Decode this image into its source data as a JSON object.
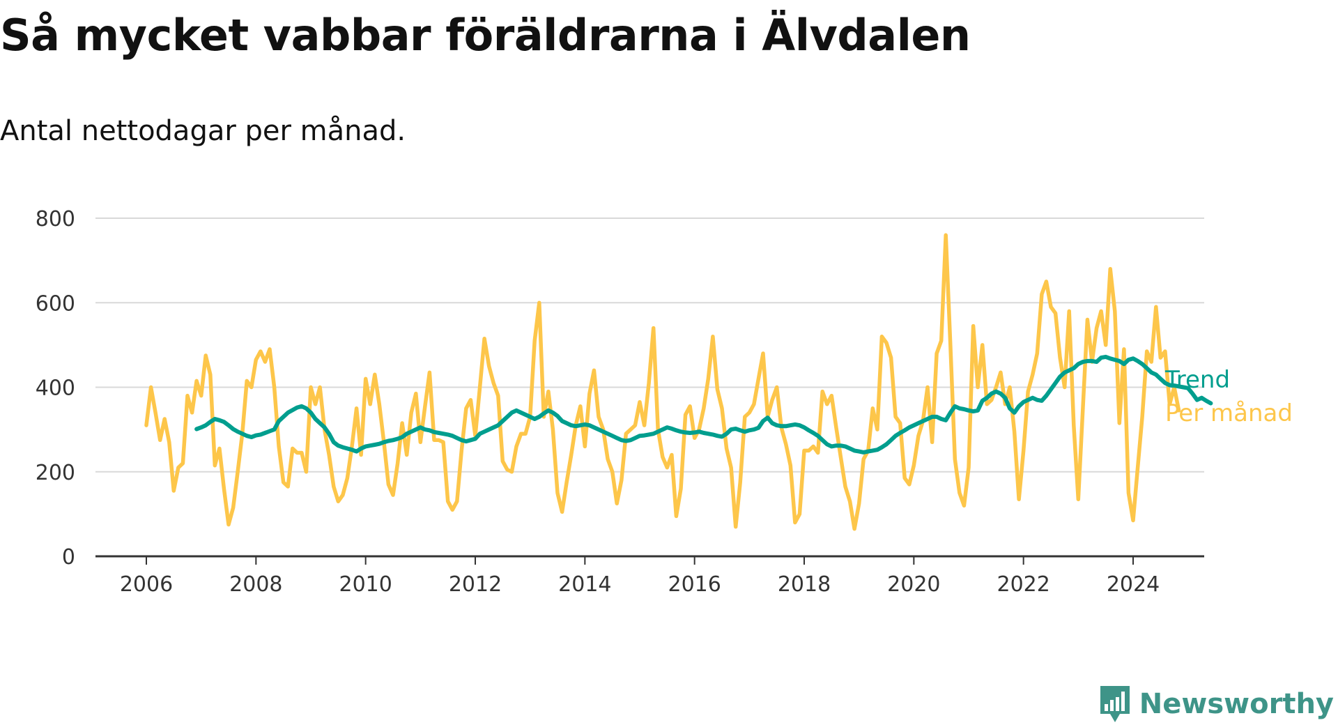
{
  "title": "Så mycket vabbar föräldrarna i Älvdalen",
  "subtitle": "Antal nettodagar per månad.",
  "brand": {
    "name": "Newsworthy"
  },
  "colors": {
    "trend": "#009e8e",
    "monthly": "#fdc64a",
    "grid": "#d9d9d9",
    "axis": "#333333",
    "brand": "#3e9488"
  },
  "chart_data": {
    "type": "line",
    "x_start": "2006-01",
    "x_step": "month",
    "xlim": [
      2005.9,
      2026.0
    ],
    "ylim": [
      0,
      800
    ],
    "y_ticks": [
      0,
      200,
      400,
      600,
      800
    ],
    "x_ticks": [
      2006,
      2008,
      2010,
      2012,
      2014,
      2016,
      2018,
      2020,
      2022,
      2024
    ],
    "x_tick_labels": [
      "2006",
      "2008",
      "2010",
      "2012",
      "2014",
      "2016",
      "2018",
      "2020",
      "2022",
      "2024"
    ],
    "grid": true,
    "legend": "end-labels",
    "series": [
      {
        "name": "Per månad",
        "color": "#fdc64a",
        "start": "2006-01",
        "values": [
          310,
          400,
          340,
          275,
          325,
          270,
          155,
          210,
          220,
          380,
          340,
          415,
          380,
          475,
          430,
          215,
          255,
          160,
          75,
          115,
          200,
          290,
          415,
          400,
          465,
          485,
          460,
          490,
          400,
          260,
          175,
          165,
          255,
          245,
          245,
          200,
          400,
          360,
          400,
          300,
          240,
          165,
          130,
          145,
          185,
          260,
          350,
          240,
          420,
          360,
          430,
          360,
          270,
          170,
          145,
          220,
          315,
          240,
          340,
          385,
          270,
          355,
          435,
          275,
          275,
          270,
          130,
          110,
          130,
          250,
          350,
          370,
          285,
          400,
          515,
          450,
          410,
          380,
          225,
          205,
          200,
          260,
          290,
          290,
          330,
          510,
          600,
          330,
          390,
          300,
          150,
          105,
          175,
          240,
          310,
          355,
          260,
          385,
          440,
          330,
          300,
          230,
          200,
          125,
          180,
          290,
          300,
          310,
          365,
          310,
          410,
          540,
          300,
          235,
          210,
          240,
          95,
          160,
          335,
          355,
          280,
          300,
          350,
          420,
          520,
          395,
          350,
          255,
          210,
          70,
          175,
          330,
          340,
          360,
          420,
          480,
          330,
          370,
          400,
          305,
          265,
          215,
          80,
          100,
          250,
          250,
          260,
          245,
          390,
          360,
          380,
          305,
          235,
          165,
          130,
          65,
          125,
          230,
          250,
          350,
          300,
          520,
          505,
          470,
          330,
          315,
          185,
          170,
          215,
          285,
          320,
          400,
          270,
          480,
          510,
          760,
          500,
          230,
          150,
          120,
          210,
          545,
          400,
          500,
          360,
          370,
          400,
          435,
          360,
          400,
          295,
          135,
          250,
          390,
          430,
          480,
          620,
          650,
          590,
          575,
          470,
          400,
          580,
          310,
          135,
          350,
          560,
          460,
          540,
          580,
          500,
          680,
          580,
          315,
          490,
          150,
          85,
          210,
          330,
          485,
          460,
          590,
          470,
          485,
          360,
          400,
          345
        ]
      },
      {
        "name": "Trend",
        "color": "#009e8e",
        "start": "2006-12",
        "values": [
          301,
          305,
          310,
          318,
          325,
          322,
          318,
          310,
          301,
          295,
          290,
          285,
          282,
          286,
          288,
          292,
          296,
          300,
          320,
          330,
          340,
          346,
          352,
          355,
          350,
          340,
          325,
          315,
          305,
          290,
          270,
          262,
          258,
          255,
          252,
          248,
          255,
          260,
          262,
          264,
          266,
          270,
          273,
          275,
          278,
          282,
          290,
          295,
          300,
          305,
          300,
          298,
          294,
          292,
          290,
          288,
          285,
          280,
          275,
          272,
          275,
          278,
          290,
          295,
          300,
          305,
          310,
          320,
          330,
          340,
          345,
          340,
          335,
          330,
          325,
          330,
          338,
          345,
          340,
          332,
          320,
          315,
          310,
          308,
          310,
          312,
          310,
          305,
          300,
          295,
          290,
          285,
          280,
          275,
          273,
          275,
          280,
          285,
          286,
          288,
          290,
          295,
          300,
          305,
          302,
          298,
          295,
          293,
          292,
          293,
          295,
          292,
          290,
          288,
          285,
          283,
          290,
          300,
          302,
          298,
          295,
          298,
          300,
          304,
          320,
          328,
          315,
          310,
          308,
          308,
          310,
          312,
          310,
          305,
          298,
          292,
          285,
          275,
          265,
          260,
          262,
          262,
          260,
          255,
          250,
          248,
          246,
          248,
          250,
          252,
          258,
          265,
          275,
          285,
          292,
          298,
          305,
          310,
          315,
          320,
          325,
          330,
          330,
          325,
          322,
          340,
          355,
          350,
          348,
          345,
          343,
          345,
          368,
          375,
          385,
          390,
          385,
          375,
          350,
          340,
          355,
          365,
          370,
          375,
          370,
          368,
          380,
          395,
          410,
          425,
          435,
          440,
          445,
          455,
          460,
          462,
          462,
          460,
          470,
          472,
          468,
          465,
          462,
          455,
          465,
          468,
          462,
          455,
          445,
          435,
          430,
          420,
          410,
          405,
          404,
          402,
          400,
          398,
          385,
          370,
          375,
          368,
          362
        ]
      }
    ]
  }
}
